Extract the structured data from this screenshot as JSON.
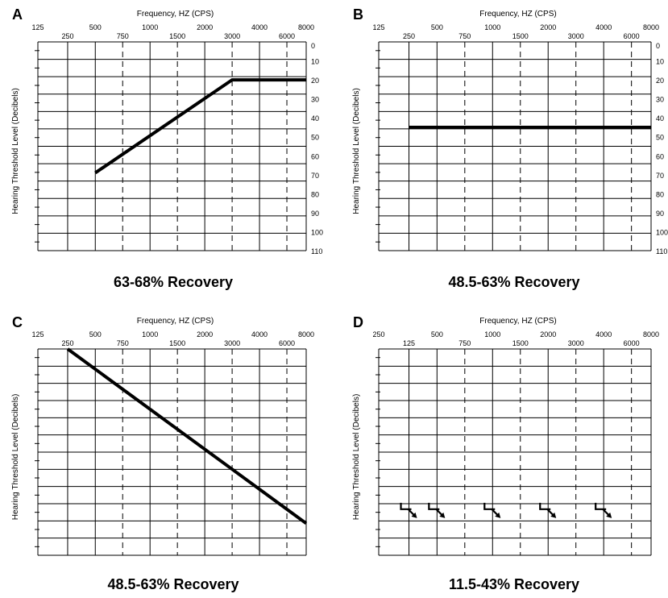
{
  "chart_data": [
    {
      "panel": "A",
      "type": "line",
      "title": "63-68% Recovery",
      "xlabel": "Frequency, HZ (CPS)",
      "ylabel": "Hearing Threshold Level (Decibels)",
      "x_ticks_top": [
        "125",
        "500",
        "1000",
        "2000",
        "4000",
        "8000"
      ],
      "x_ticks_bottom": [
        "250",
        "750",
        "1500",
        "3000",
        "6000"
      ],
      "y_ticks": [
        "0",
        "10",
        "20",
        "30",
        "40",
        "50",
        "60",
        "70",
        "80",
        "90",
        "100",
        "110"
      ],
      "ylim": [
        0,
        110
      ],
      "y_inverted": true,
      "series": [
        {
          "points": [
            {
              "x": 500,
              "y": 69
            },
            {
              "x": 3000,
              "y": 20
            },
            {
              "x": 8000,
              "y": 20
            }
          ]
        }
      ]
    },
    {
      "panel": "B",
      "type": "line",
      "title": "48.5-63% Recovery",
      "xlabel": "Frequency, HZ (CPS)",
      "ylabel": "Hearing Threshold Level (Decibels)",
      "x_ticks_top": [
        "125",
        "500",
        "1000",
        "2000",
        "4000",
        "8000"
      ],
      "x_ticks_bottom": [
        "250",
        "750",
        "1500",
        "3000",
        "6000"
      ],
      "y_ticks": [
        "0",
        "10",
        "20",
        "30",
        "40",
        "50",
        "60",
        "70",
        "80",
        "90",
        "100",
        "110"
      ],
      "ylim": [
        0,
        110
      ],
      "y_inverted": true,
      "series": [
        {
          "points": [
            {
              "x": 250,
              "y": 45
            },
            {
              "x": 8000,
              "y": 45
            }
          ]
        }
      ]
    },
    {
      "panel": "C",
      "type": "line",
      "title": "48.5-63% Recovery",
      "xlabel": "Frequency, HZ (CPS)",
      "ylabel": "Hearing Threshold Level (Decibels)",
      "x_ticks_top": [
        "125",
        "500",
        "1000",
        "2000",
        "4000",
        "8000"
      ],
      "x_ticks_bottom": [
        "250",
        "750",
        "1500",
        "3000",
        "6000"
      ],
      "y_ticks": [],
      "ylim": [
        0,
        110
      ],
      "y_inverted": true,
      "series": [
        {
          "points": [
            {
              "x": 250,
              "y": 0
            },
            {
              "x": 8000,
              "y": 93
            }
          ]
        }
      ]
    },
    {
      "panel": "D",
      "type": "scatter",
      "title": "11.5-43% Recovery",
      "xlabel": "Frequency, HZ (CPS)",
      "ylabel": "Hearing Threshold Level (Decibels)",
      "x_ticks_top": [
        "250",
        "500",
        "1000",
        "2000",
        "4000",
        "8000"
      ],
      "x_ticks_bottom": [
        "125",
        "750",
        "1500",
        "3000",
        "6000"
      ],
      "y_ticks": [],
      "ylim": [
        0,
        110
      ],
      "y_inverted": true,
      "markers": "no-response",
      "series": [
        {
          "points": [
            {
              "x": 250,
              "y": 85
            },
            {
              "x": 500,
              "y": 85
            },
            {
              "x": 1000,
              "y": 85
            },
            {
              "x": 2000,
              "y": 85
            },
            {
              "x": 4000,
              "y": 85
            }
          ]
        }
      ]
    }
  ]
}
